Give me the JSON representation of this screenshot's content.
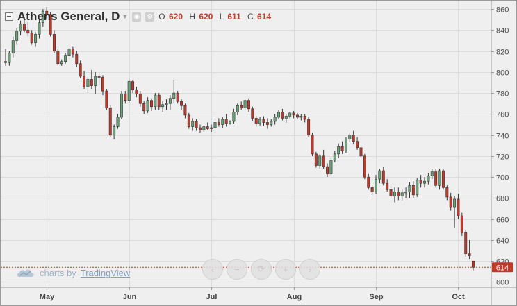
{
  "legend": {
    "symbol": "Athens General, D",
    "o_label": "O",
    "o_value": "620",
    "h_label": "H",
    "h_value": "620",
    "l_label": "L",
    "l_value": "611",
    "c_label": "C",
    "c_value": "614"
  },
  "icons": {
    "minimize": "minimize-icon",
    "caret": "caret-down-icon",
    "eye": "eye-icon",
    "gear": "gear-icon",
    "cloud": "cloud-logo-icon"
  },
  "watermark": {
    "prefix": "charts by",
    "brand": "TradingView"
  },
  "nav_buttons": [
    "scroll-left",
    "zoom-out",
    "reset",
    "zoom-in",
    "scroll-right"
  ],
  "colors": {
    "up": "#6aa27a",
    "down": "#c0392b",
    "last_price_bg": "#c0392b"
  },
  "chart_data": {
    "type": "candlestick",
    "ylim": [
      595,
      868
    ],
    "yticks": [
      600,
      620,
      640,
      660,
      680,
      700,
      720,
      740,
      760,
      780,
      800,
      820,
      840,
      860
    ],
    "xticks": [
      "May",
      "Jun",
      "Jul",
      "Aug",
      "Sep",
      "Oct"
    ],
    "last_price": "614",
    "grid": true,
    "candles": [
      [
        810,
        822,
        806,
        809
      ],
      [
        809,
        820,
        806,
        818
      ],
      [
        818,
        834,
        814,
        830
      ],
      [
        830,
        842,
        826,
        839
      ],
      [
        839,
        849,
        835,
        846
      ],
      [
        846,
        850,
        838,
        840
      ],
      [
        840,
        848,
        834,
        837
      ],
      [
        837,
        840,
        826,
        828
      ],
      [
        828,
        838,
        824,
        836
      ],
      [
        836,
        850,
        832,
        847
      ],
      [
        847,
        860,
        843,
        858
      ],
      [
        858,
        862,
        851,
        855
      ],
      [
        855,
        857,
        834,
        836
      ],
      [
        836,
        840,
        818,
        820
      ],
      [
        820,
        822,
        806,
        808
      ],
      [
        808,
        812,
        806,
        810
      ],
      [
        810,
        818,
        808,
        816
      ],
      [
        816,
        824,
        812,
        822
      ],
      [
        822,
        824,
        814,
        817
      ],
      [
        817,
        820,
        805,
        808
      ],
      [
        808,
        811,
        794,
        796
      ],
      [
        796,
        801,
        784,
        786
      ],
      [
        786,
        795,
        780,
        793
      ],
      [
        793,
        802,
        784,
        787
      ],
      [
        787,
        800,
        779,
        796
      ],
      [
        796,
        799,
        788,
        795
      ],
      [
        795,
        797,
        778,
        782
      ],
      [
        782,
        784,
        764,
        766
      ],
      [
        766,
        768,
        738,
        740
      ],
      [
        740,
        750,
        736,
        748
      ],
      [
        748,
        760,
        746,
        757
      ],
      [
        757,
        782,
        755,
        779
      ],
      [
        779,
        782,
        770,
        773
      ],
      [
        773,
        793,
        771,
        791
      ],
      [
        791,
        792,
        780,
        783
      ],
      [
        783,
        786,
        776,
        779
      ],
      [
        779,
        782,
        767,
        770
      ],
      [
        770,
        772,
        760,
        763
      ],
      [
        763,
        776,
        761,
        773
      ],
      [
        773,
        775,
        763,
        767
      ],
      [
        767,
        780,
        764,
        778
      ],
      [
        778,
        780,
        764,
        767
      ],
      [
        767,
        772,
        762,
        769
      ],
      [
        769,
        774,
        764,
        770
      ],
      [
        770,
        778,
        764,
        775
      ],
      [
        775,
        792,
        771,
        780
      ],
      [
        780,
        782,
        770,
        772
      ],
      [
        772,
        774,
        764,
        768
      ],
      [
        768,
        770,
        756,
        759
      ],
      [
        759,
        761,
        746,
        748
      ],
      [
        748,
        756,
        744,
        753
      ],
      [
        753,
        755,
        744,
        747
      ],
      [
        747,
        750,
        742,
        745
      ],
      [
        745,
        749,
        743,
        748
      ],
      [
        748,
        752,
        745,
        746
      ],
      [
        746,
        750,
        743,
        747
      ],
      [
        747,
        755,
        745,
        752
      ],
      [
        752,
        756,
        748,
        750
      ],
      [
        750,
        757,
        747,
        755
      ],
      [
        755,
        760,
        748,
        751
      ],
      [
        751,
        754,
        750,
        753
      ],
      [
        753,
        765,
        751,
        762
      ],
      [
        762,
        770,
        759,
        768
      ],
      [
        768,
        772,
        764,
        766
      ],
      [
        766,
        774,
        764,
        773
      ],
      [
        773,
        775,
        762,
        765
      ],
      [
        765,
        767,
        753,
        756
      ],
      [
        756,
        758,
        748,
        751
      ],
      [
        751,
        757,
        749,
        755
      ],
      [
        755,
        758,
        749,
        752
      ],
      [
        752,
        756,
        746,
        750
      ],
      [
        750,
        755,
        748,
        753
      ],
      [
        753,
        760,
        750,
        757
      ],
      [
        757,
        764,
        755,
        762
      ],
      [
        762,
        765,
        754,
        756
      ],
      [
        756,
        760,
        752,
        758
      ],
      [
        758,
        762,
        756,
        761
      ],
      [
        761,
        763,
        756,
        759
      ],
      [
        759,
        761,
        755,
        757
      ],
      [
        757,
        760,
        754,
        758
      ],
      [
        758,
        760,
        752,
        755
      ],
      [
        755,
        757,
        738,
        740
      ],
      [
        740,
        742,
        720,
        722
      ],
      [
        722,
        724,
        709,
        711
      ],
      [
        711,
        722,
        708,
        720
      ],
      [
        720,
        726,
        708,
        710
      ],
      [
        710,
        713,
        700,
        703
      ],
      [
        703,
        718,
        701,
        716
      ],
      [
        716,
        725,
        714,
        722
      ],
      [
        722,
        732,
        718,
        729
      ],
      [
        729,
        734,
        722,
        725
      ],
      [
        725,
        738,
        723,
        736
      ],
      [
        736,
        742,
        733,
        740
      ],
      [
        740,
        744,
        731,
        734
      ],
      [
        734,
        738,
        726,
        728
      ],
      [
        728,
        730,
        718,
        720
      ],
      [
        720,
        722,
        698,
        700
      ],
      [
        700,
        703,
        688,
        690
      ],
      [
        690,
        692,
        683,
        686
      ],
      [
        686,
        702,
        684,
        698
      ],
      [
        698,
        708,
        694,
        706
      ],
      [
        706,
        710,
        692,
        694
      ],
      [
        694,
        698,
        686,
        688
      ],
      [
        688,
        692,
        680,
        682
      ],
      [
        682,
        690,
        676,
        686
      ],
      [
        686,
        690,
        678,
        682
      ],
      [
        682,
        688,
        678,
        685
      ],
      [
        685,
        690,
        680,
        686
      ],
      [
        686,
        695,
        680,
        692
      ],
      [
        692,
        696,
        680,
        683
      ],
      [
        683,
        699,
        681,
        697
      ],
      [
        697,
        702,
        690,
        694
      ],
      [
        694,
        700,
        690,
        696
      ],
      [
        696,
        704,
        693,
        701
      ],
      [
        701,
        708,
        698,
        705
      ],
      [
        705,
        708,
        690,
        692
      ],
      [
        692,
        708,
        688,
        706
      ],
      [
        706,
        708,
        688,
        690
      ],
      [
        690,
        692,
        678,
        681
      ],
      [
        681,
        685,
        668,
        671
      ],
      [
        671,
        682,
        652,
        679
      ],
      [
        679,
        684,
        660,
        663
      ],
      [
        663,
        666,
        644,
        647
      ],
      [
        647,
        650,
        624,
        627
      ],
      [
        627,
        640,
        622,
        625
      ],
      [
        620,
        620,
        611,
        614
      ]
    ]
  }
}
